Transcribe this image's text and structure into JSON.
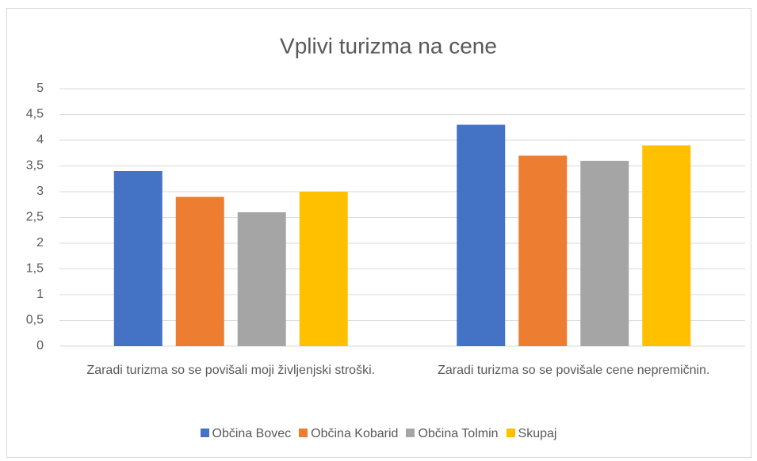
{
  "chart_data": {
    "type": "bar",
    "title": "Vplivi turizma na cene",
    "categories": [
      "Zaradi turizma so se povišali moji življenjski stroški.",
      "Zaradi turizma so se povišale cene nepremičnin."
    ],
    "series": [
      {
        "name": "Občina Bovec",
        "color": "#4472c4",
        "values": [
          3.4,
          4.3
        ]
      },
      {
        "name": "Občina Kobarid",
        "color": "#ed7d31",
        "values": [
          2.9,
          3.7
        ]
      },
      {
        "name": "Občina Tolmin",
        "color": "#a5a5a5",
        "values": [
          2.6,
          3.6
        ]
      },
      {
        "name": "Skupaj",
        "color": "#ffc000",
        "values": [
          3,
          3.9
        ]
      }
    ],
    "ylim": [
      0,
      5
    ],
    "yticks": [
      0,
      {
        "value": 0.5,
        "label": "0,5"
      },
      1,
      {
        "value": 1.5,
        "label": "1,5"
      },
      2,
      {
        "value": 2.5,
        "label": "2,5"
      },
      3,
      {
        "value": 3.5,
        "label": "3,5"
      },
      4,
      {
        "value": 4.5,
        "label": "4,5"
      },
      5
    ],
    "grid": true,
    "legend": "bottom"
  }
}
